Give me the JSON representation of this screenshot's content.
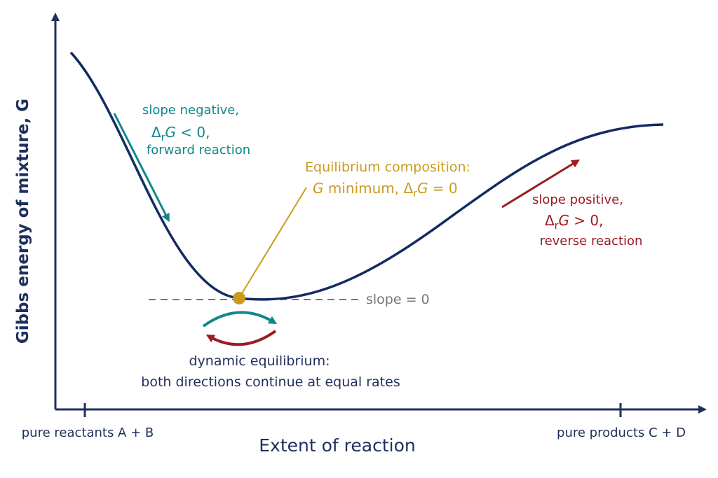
{
  "colors": {
    "axis": "#1f2f5c",
    "curve": "#142a63",
    "forward": "#12878a",
    "reverse": "#9b1c22",
    "equilibrium": "#c99a1e",
    "dashed": "#777777",
    "text_dark": "#1f2f5c"
  },
  "axes": {
    "y_label": "Gibbs energy of mixture, G",
    "x_label": "Extent of reaction",
    "x_start_label": "pure reactants A + B",
    "x_end_label": "pure products C + D"
  },
  "annotations": {
    "left": {
      "line1": "slope negative,",
      "math_delta": "Δ",
      "math_sub": "r",
      "math_var": "G",
      "math_rest": " < 0,",
      "line3": "forward reaction"
    },
    "right": {
      "line1": "slope positive,",
      "math_delta": "Δ",
      "math_sub": "r",
      "math_var": "G",
      "math_rest": " > 0,",
      "line3": "reverse reaction"
    },
    "equilibrium": {
      "line1": "Equilibrium composition:",
      "line2_var": "G",
      "line2_mid": " minimum, ",
      "line2_delta": "Δ",
      "line2_sub": "r",
      "line2_var2": "G",
      "line2_rest": " = 0"
    },
    "slope_zero": "slope = 0",
    "dynamic": {
      "line1": "dynamic equilibrium:",
      "line2": "both directions continue at equal rates"
    }
  }
}
